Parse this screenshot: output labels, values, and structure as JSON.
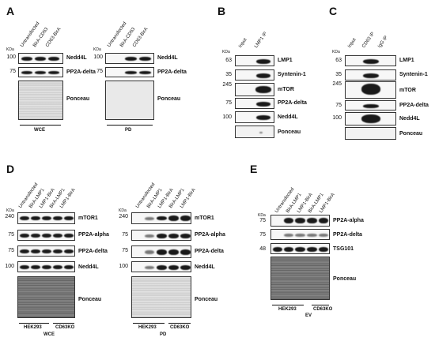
{
  "panels": {
    "A": {
      "label": "A",
      "lanes": [
        "Untransfected",
        "BirA-CD63",
        "CD63-BirA"
      ],
      "wce_label": "WCE",
      "pd_label": "PD",
      "pd_lanes": [
        "Untransfected",
        "BirA-CD63",
        "CD63-BirA"
      ],
      "kda": "KDa",
      "markers": [
        "100",
        "75"
      ],
      "bands": [
        "Nedd4L",
        "PP2A-delta",
        "Ponceau"
      ]
    },
    "B": {
      "label": "B",
      "lanes": [
        "Input",
        "LMP1 IP"
      ],
      "kda": "KDa",
      "markers": [
        "63",
        "35",
        "245",
        "75",
        "100"
      ],
      "bands": [
        "LMP1",
        "Syntenin-1",
        "mTOR",
        "PP2A-delta",
        "Nedd4L",
        "Ponceau"
      ]
    },
    "C": {
      "label": "C",
      "lanes": [
        "Input",
        "CD63 IP",
        "IgG IP"
      ],
      "kda": "KDa",
      "markers": [
        "63",
        "35",
        "245",
        "75",
        "100"
      ],
      "bands": [
        "LMP1",
        "Syntenin-1",
        "mTOR",
        "PP2A-delta",
        "Nedd4L",
        "Ponceau"
      ]
    },
    "D": {
      "label": "D",
      "lanes": [
        "Untransfected",
        "BirA-LMP1",
        "LMP1-BirA",
        "BirA-LMP1",
        "LMP1-BirA"
      ],
      "kda": "KDa",
      "markers": [
        "240",
        "75",
        "75",
        "100"
      ],
      "bands": [
        "mTOR1",
        "PP2A-alpha",
        "PP2A-delta",
        "Nedd4L",
        "Ponceau"
      ],
      "groups": [
        "HEK293",
        "CD63KO"
      ],
      "wce_label": "WCE",
      "pd_label": "PD"
    },
    "E": {
      "label": "E",
      "lanes": [
        "Untransfected",
        "BirA-LMP1",
        "LMP1-BirA",
        "BirA-LMP1",
        "LMP1-BirA"
      ],
      "kda": "KDa",
      "markers": [
        "75",
        "75",
        "48"
      ],
      "bands": [
        "PP2A-alpha",
        "PP2A-delta",
        "TSG101",
        "Ponceau"
      ],
      "groups": [
        "HEK293",
        "CD63KO"
      ],
      "ev_label": "EV"
    }
  }
}
